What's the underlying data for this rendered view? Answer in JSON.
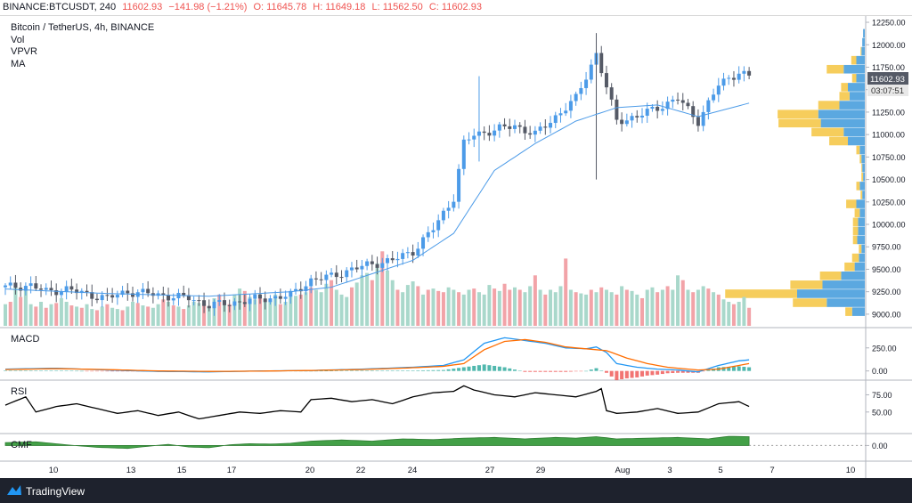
{
  "header": {
    "symbol": "BINANCE:BTCUSDT, 240",
    "last": "11602.93",
    "change": "−141.98 (−1.21%)",
    "open": "O: 11645.78",
    "high": "H: 11649.18",
    "low": "L: 11562.50",
    "close": "C: 11602.93"
  },
  "legend": {
    "title": "Bitcoin / TetherUS, 4h, BINANCE",
    "items": [
      "Vol",
      "VPVR",
      "MA"
    ]
  },
  "price_tag": {
    "price": "11602.93",
    "countdown": "03:07:51"
  },
  "panes": {
    "macd": "MACD",
    "rsi": "RSI",
    "cmf": "CMF"
  },
  "footer": {
    "brand": "TradingView"
  },
  "colors": {
    "up": "#4c9be8",
    "down": "#555a66",
    "ma": "#4c9be8",
    "vol_up": "#a9d8cb",
    "vol_down": "#f2a3a8",
    "macd": "#2196f3",
    "signal": "#ff6d00",
    "hist_up": "#26a69a",
    "hist_down": "#ef5350",
    "rsi": "#000000",
    "cmf": "#43a047",
    "vp_blue": "#5ba8e0",
    "vp_yellow": "#f6cd5c"
  },
  "chart_data": {
    "type": "candlestick",
    "title": "Bitcoin / TetherUS, 4h, BINANCE",
    "price_axis": {
      "ylim": [
        8880,
        12300
      ],
      "ticks": [
        "12250.00",
        "12000.00",
        "11750.00",
        "11500.00",
        "11250.00",
        "11000.00",
        "10750.00",
        "10500.00",
        "10250.00",
        "10000.00",
        "9750.00",
        "9500.00",
        "9250.00",
        "9000.00"
      ]
    },
    "time_axis": {
      "ticks": [
        "10",
        "13",
        "15",
        "17",
        "20",
        "22",
        "24",
        "27",
        "29",
        "Aug",
        "3",
        "5",
        "7",
        "10"
      ]
    },
    "price_path": [
      [
        0,
        9300
      ],
      [
        5,
        9320
      ],
      [
        8,
        9250
      ],
      [
        12,
        9280
      ],
      [
        16,
        9220
      ],
      [
        20,
        9180
      ],
      [
        24,
        9250
      ],
      [
        28,
        9230
      ],
      [
        32,
        9200
      ],
      [
        36,
        9180
      ],
      [
        40,
        9100
      ],
      [
        44,
        9120
      ],
      [
        48,
        9160
      ],
      [
        52,
        9180
      ],
      [
        56,
        9210
      ],
      [
        60,
        9380
      ],
      [
        64,
        9420
      ],
      [
        68,
        9500
      ],
      [
        72,
        9560
      ],
      [
        76,
        9600
      ],
      [
        80,
        9700
      ],
      [
        84,
        9950
      ],
      [
        88,
        10300
      ],
      [
        90,
        10900
      ],
      [
        92,
        11000
      ],
      [
        96,
        11050
      ],
      [
        100,
        11100
      ],
      [
        104,
        11000
      ],
      [
        108,
        11200
      ],
      [
        112,
        11400
      ],
      [
        116,
        11900
      ],
      [
        120,
        11150
      ],
      [
        124,
        11200
      ],
      [
        128,
        11300
      ],
      [
        132,
        11400
      ],
      [
        136,
        11150
      ],
      [
        140,
        11550
      ],
      [
        144,
        11700
      ],
      [
        146,
        11640
      ]
    ],
    "candles_count": 147,
    "ma": [
      [
        0,
        9280
      ],
      [
        20,
        9230
      ],
      [
        40,
        9200
      ],
      [
        56,
        9250
      ],
      [
        64,
        9300
      ],
      [
        72,
        9450
      ],
      [
        80,
        9600
      ],
      [
        88,
        9900
      ],
      [
        96,
        10600
      ],
      [
        104,
        10900
      ],
      [
        112,
        11150
      ],
      [
        120,
        11300
      ],
      [
        128,
        11330
      ],
      [
        136,
        11200
      ],
      [
        146,
        11350
      ]
    ],
    "volume": [
      180,
      200,
      350,
      240,
      300,
      180,
      160,
      200,
      150,
      180,
      190,
      230,
      200,
      170,
      160,
      150,
      180,
      140,
      130,
      160,
      180,
      150,
      140,
      130,
      160,
      200,
      190,
      170,
      160,
      150,
      180,
      220,
      200,
      170,
      160,
      140,
      170,
      200,
      190,
      180,
      160,
      230,
      260,
      200,
      180,
      260,
      310,
      290,
      240,
      220,
      230,
      200,
      210,
      260,
      180,
      200,
      240,
      250,
      260,
      280,
      320,
      300,
      280,
      350,
      380,
      300,
      260,
      240,
      320,
      360,
      420,
      440,
      380,
      520,
      620,
      460,
      380,
      300,
      280,
      340,
      370,
      330,
      260,
      300,
      310,
      290,
      280,
      320,
      300,
      280,
      260,
      300,
      310,
      280,
      260,
      340,
      310,
      290,
      350,
      300,
      320,
      300,
      280,
      330,
      420,
      300,
      260,
      300,
      280,
      330,
      560,
      300,
      280,
      270,
      260,
      300,
      280,
      320,
      300,
      280,
      260,
      330,
      300,
      290,
      260,
      230,
      300,
      320,
      280,
      300,
      330,
      300,
      420,
      380,
      300,
      280,
      300,
      330,
      310,
      280,
      260,
      220,
      200,
      180,
      200,
      240,
      150
    ],
    "vol_up_flags": "1010110101011010110101101101011010101110110101101101110111010111011101110101101110101001101101110100101101011101011010110101101101011010110101101",
    "volume_profile": [
      {
        "price": 12125,
        "blue": 2,
        "yellow": 0
      },
      {
        "price": 12025,
        "blue": 3,
        "yellow": 0
      },
      {
        "price": 11925,
        "blue": 4,
        "yellow": 1
      },
      {
        "price": 11825,
        "blue": 10,
        "yellow": 6
      },
      {
        "price": 11725,
        "blue": 25,
        "yellow": 20
      },
      {
        "price": 11625,
        "blue": 10,
        "yellow": 5
      },
      {
        "price": 11525,
        "blue": 20,
        "yellow": 8
      },
      {
        "price": 11425,
        "blue": 18,
        "yellow": 12
      },
      {
        "price": 11325,
        "blue": 30,
        "yellow": 25
      },
      {
        "price": 11225,
        "blue": 55,
        "yellow": 48
      },
      {
        "price": 11125,
        "blue": 52,
        "yellow": 50
      },
      {
        "price": 11025,
        "blue": 25,
        "yellow": 38
      },
      {
        "price": 10925,
        "blue": 20,
        "yellow": 22
      },
      {
        "price": 10825,
        "blue": 6,
        "yellow": 4
      },
      {
        "price": 10725,
        "blue": 4,
        "yellow": 2
      },
      {
        "price": 10625,
        "blue": 3,
        "yellow": 1
      },
      {
        "price": 10525,
        "blue": 2,
        "yellow": 2
      },
      {
        "price": 10425,
        "blue": 6,
        "yellow": 4
      },
      {
        "price": 10325,
        "blue": 3,
        "yellow": 2
      },
      {
        "price": 10225,
        "blue": 10,
        "yellow": 12
      },
      {
        "price": 10125,
        "blue": 6,
        "yellow": 6
      },
      {
        "price": 10025,
        "blue": 8,
        "yellow": 6
      },
      {
        "price": 9925,
        "blue": 8,
        "yellow": 6
      },
      {
        "price": 9825,
        "blue": 9,
        "yellow": 5
      },
      {
        "price": 9725,
        "blue": 4,
        "yellow": 3
      },
      {
        "price": 9625,
        "blue": 7,
        "yellow": 8
      },
      {
        "price": 9525,
        "blue": 12,
        "yellow": 12
      },
      {
        "price": 9425,
        "blue": 28,
        "yellow": 25
      },
      {
        "price": 9325,
        "blue": 50,
        "yellow": 38
      },
      {
        "price": 9225,
        "blue": 80,
        "yellow": 85
      },
      {
        "price": 9125,
        "blue": 45,
        "yellow": 40
      },
      {
        "price": 9025,
        "blue": 15,
        "yellow": 8
      }
    ],
    "macd": {
      "ylim": [
        -90,
        460
      ],
      "ticks": [
        "250.00",
        "0.00"
      ],
      "macd_line": [
        [
          0,
          20
        ],
        [
          10,
          30
        ],
        [
          20,
          10
        ],
        [
          30,
          -5
        ],
        [
          40,
          -10
        ],
        [
          50,
          0
        ],
        [
          60,
          5
        ],
        [
          70,
          20
        ],
        [
          80,
          40
        ],
        [
          86,
          60
        ],
        [
          90,
          120
        ],
        [
          94,
          300
        ],
        [
          98,
          360
        ],
        [
          102,
          330
        ],
        [
          106,
          300
        ],
        [
          110,
          250
        ],
        [
          114,
          240
        ],
        [
          116,
          260
        ],
        [
          118,
          200
        ],
        [
          120,
          80
        ],
        [
          124,
          40
        ],
        [
          128,
          20
        ],
        [
          132,
          10
        ],
        [
          136,
          -10
        ],
        [
          140,
          60
        ],
        [
          144,
          110
        ],
        [
          146,
          120
        ]
      ],
      "signal_line": [
        [
          0,
          15
        ],
        [
          10,
          25
        ],
        [
          20,
          15
        ],
        [
          30,
          0
        ],
        [
          40,
          -5
        ],
        [
          50,
          -2
        ],
        [
          60,
          5
        ],
        [
          70,
          15
        ],
        [
          80,
          35
        ],
        [
          86,
          50
        ],
        [
          90,
          80
        ],
        [
          94,
          230
        ],
        [
          98,
          320
        ],
        [
          102,
          340
        ],
        [
          106,
          310
        ],
        [
          110,
          260
        ],
        [
          114,
          240
        ],
        [
          118,
          220
        ],
        [
          122,
          140
        ],
        [
          126,
          80
        ],
        [
          130,
          40
        ],
        [
          136,
          10
        ],
        [
          140,
          20
        ],
        [
          144,
          60
        ],
        [
          146,
          80
        ]
      ]
    },
    "rsi": {
      "ylim": [
        20,
        95
      ],
      "ticks": [
        "75.00",
        "50.00"
      ],
      "values": [
        [
          0,
          60
        ],
        [
          4,
          72
        ],
        [
          6,
          50
        ],
        [
          10,
          58
        ],
        [
          14,
          62
        ],
        [
          18,
          55
        ],
        [
          22,
          48
        ],
        [
          26,
          52
        ],
        [
          30,
          45
        ],
        [
          34,
          50
        ],
        [
          38,
          40
        ],
        [
          42,
          45
        ],
        [
          46,
          50
        ],
        [
          50,
          48
        ],
        [
          54,
          52
        ],
        [
          58,
          50
        ],
        [
          60,
          68
        ],
        [
          64,
          70
        ],
        [
          68,
          65
        ],
        [
          72,
          68
        ],
        [
          76,
          62
        ],
        [
          80,
          72
        ],
        [
          84,
          78
        ],
        [
          88,
          80
        ],
        [
          90,
          88
        ],
        [
          92,
          82
        ],
        [
          96,
          75
        ],
        [
          100,
          72
        ],
        [
          104,
          78
        ],
        [
          108,
          75
        ],
        [
          112,
          72
        ],
        [
          116,
          80
        ],
        [
          117,
          84
        ],
        [
          118,
          52
        ],
        [
          120,
          48
        ],
        [
          124,
          50
        ],
        [
          128,
          55
        ],
        [
          132,
          48
        ],
        [
          136,
          50
        ],
        [
          140,
          62
        ],
        [
          144,
          65
        ],
        [
          146,
          58
        ]
      ]
    },
    "cmf": {
      "ylim": [
        -0.4,
        0.3
      ],
      "ticks": [
        "0.00"
      ],
      "values": [
        [
          0,
          0.08
        ],
        [
          6,
          0.1
        ],
        [
          12,
          0.02
        ],
        [
          18,
          -0.05
        ],
        [
          24,
          -0.08
        ],
        [
          28,
          -0.02
        ],
        [
          32,
          0.03
        ],
        [
          36,
          -0.04
        ],
        [
          40,
          -0.06
        ],
        [
          44,
          0.02
        ],
        [
          48,
          0.05
        ],
        [
          52,
          0.04
        ],
        [
          56,
          0.06
        ],
        [
          60,
          0.12
        ],
        [
          66,
          0.15
        ],
        [
          72,
          0.12
        ],
        [
          78,
          0.18
        ],
        [
          84,
          0.16
        ],
        [
          90,
          0.2
        ],
        [
          96,
          0.22
        ],
        [
          102,
          0.18
        ],
        [
          108,
          0.22
        ],
        [
          112,
          0.2
        ],
        [
          116,
          0.24
        ],
        [
          120,
          0.18
        ],
        [
          126,
          0.2
        ],
        [
          132,
          0.22
        ],
        [
          138,
          0.18
        ],
        [
          142,
          0.25
        ],
        [
          146,
          0.24
        ]
      ]
    }
  }
}
